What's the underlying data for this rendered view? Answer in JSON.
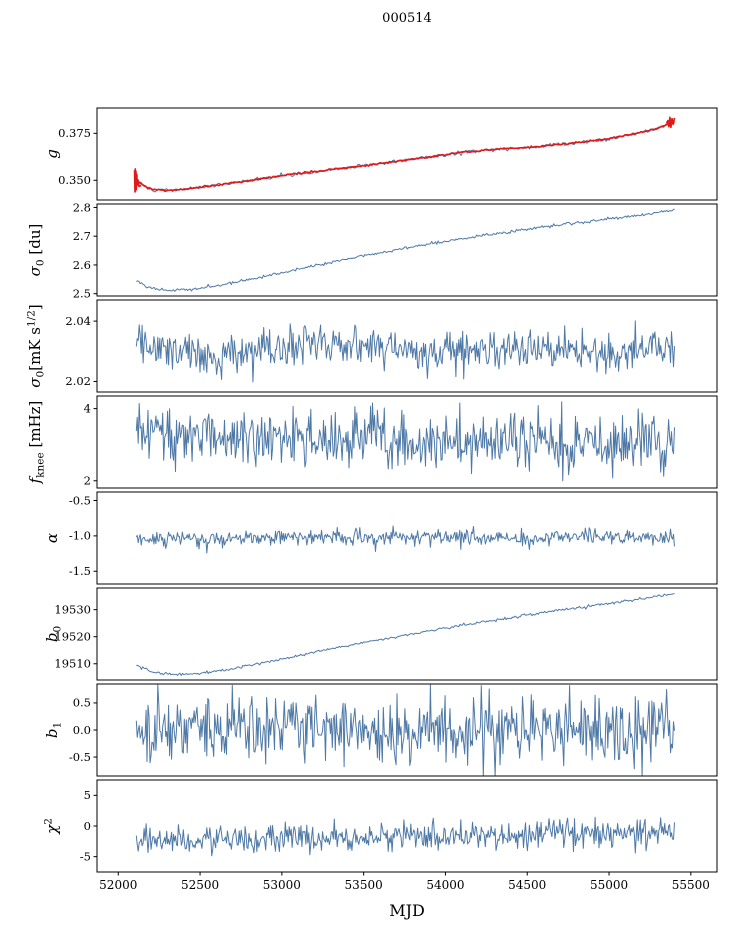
{
  "title": "000514",
  "x_axis_label": "MJD",
  "colors": {
    "line": "#4e79a7",
    "overlay": "#e11919",
    "axis": "#000000",
    "background": "#ffffff"
  },
  "chart_data": {
    "type": "line",
    "title": "000514",
    "xlabel": "MJD",
    "x_axis": {
      "lim": [
        51870,
        55660
      ],
      "ticks": [
        52000,
        52500,
        53000,
        53500,
        54000,
        54500,
        55000,
        55500
      ],
      "tick_labels": [
        "52000",
        "52500",
        "53000",
        "53500",
        "54000",
        "54500",
        "55000",
        "55500"
      ]
    },
    "panels": [
      {
        "name": "g",
        "ylabel": [
          {
            "t": "g",
            "s": "i"
          }
        ],
        "ylim": [
          0.3395,
          0.3885
        ],
        "yticks": [
          0.35,
          0.375
        ],
        "ytick_labels": [
          "0.350",
          "0.375"
        ],
        "series": [
          {
            "name": "g-data-line",
            "color": "#4e79a7",
            "sd": 0.0005,
            "n": 340,
            "seed": 101,
            "width": 1,
            "ax": [
              52100,
              52160,
              52220,
              52280,
              52360,
              52450,
              52550,
              52650,
              52750,
              52900,
              53050,
              53200,
              53350,
              53500,
              53650,
              53800,
              53950,
              54050,
              54150,
              54250,
              54350,
              54450,
              54550,
              54700,
              54850,
              55000,
              55100,
              55200,
              55300,
              55400
            ],
            "ay": [
              0.3505,
              0.3468,
              0.345,
              0.3446,
              0.3449,
              0.3457,
              0.3468,
              0.348,
              0.3492,
              0.3512,
              0.353,
              0.3546,
              0.3562,
              0.3578,
              0.3595,
              0.3612,
              0.363,
              0.3643,
              0.3652,
              0.3661,
              0.3667,
              0.3671,
              0.3679,
              0.3692,
              0.3705,
              0.3722,
              0.3738,
              0.3757,
              0.3778,
              0.3815
            ]
          },
          {
            "name": "g-fit-line",
            "color": "#e11919",
            "sd": 0.00022,
            "n": 340,
            "seed": 102,
            "width": 1.7,
            "ax": [
              52100,
              52160,
              52220,
              52280,
              52360,
              52450,
              52550,
              52650,
              52750,
              52900,
              53050,
              53200,
              53350,
              53500,
              53650,
              53800,
              53950,
              54050,
              54150,
              54250,
              54350,
              54450,
              54550,
              54700,
              54850,
              55000,
              55100,
              55200,
              55300,
              55400
            ],
            "ay": [
              0.3505,
              0.3468,
              0.345,
              0.3446,
              0.3449,
              0.3457,
              0.3468,
              0.348,
              0.3492,
              0.3512,
              0.353,
              0.3546,
              0.3562,
              0.3578,
              0.3595,
              0.3612,
              0.363,
              0.3643,
              0.3652,
              0.3661,
              0.3667,
              0.3671,
              0.3679,
              0.3692,
              0.3705,
              0.3722,
              0.3738,
              0.3757,
              0.3778,
              0.3815
            ],
            "segments": [
              [
                [
                  52100,
                  0.3553
                ],
                [
                  52102,
                  0.3438
                ],
                [
                  52104,
                  0.356
                ],
                [
                  52106,
                  0.3444
                ],
                [
                  52108,
                  0.3548
                ],
                [
                  52110,
                  0.3452
                ],
                [
                  52113,
                  0.3532
                ],
                [
                  52116,
                  0.3474
                ],
                [
                  52120,
                  0.3502
                ],
                [
                  52127,
                  0.3468
                ],
                [
                  52140,
                  0.3472
                ]
              ],
              [
                [
                  55352,
                  0.3805
                ],
                [
                  55360,
                  0.3818
                ],
                [
                  55366,
                  0.3786
                ],
                [
                  55372,
                  0.3835
                ],
                [
                  55378,
                  0.3782
                ],
                [
                  55385,
                  0.3828
                ],
                [
                  55392,
                  0.3798
                ],
                [
                  55400,
                  0.3832
                ]
              ]
            ]
          }
        ]
      },
      {
        "name": "sigma0-du",
        "ylabel": [
          {
            "t": "σ",
            "s": "i"
          },
          {
            "t": "0",
            "s": "sub"
          },
          {
            "t": " [du]",
            "s": "n"
          }
        ],
        "ylim": [
          2.492,
          2.812
        ],
        "yticks": [
          2.5,
          2.6,
          2.7,
          2.8
        ],
        "ytick_labels": [
          "2.5",
          "2.6",
          "2.7",
          "2.8"
        ],
        "series": [
          {
            "name": "sigma0-du-line",
            "color": "#4e79a7",
            "sd": 0.0025,
            "n": 420,
            "seed": 201,
            "width": 1,
            "ax": [
              52110,
              52180,
              52250,
              52330,
              52420,
              52520,
              52630,
              52750,
              52880,
              53020,
              53170,
              53320,
              53470,
              53620,
              53770,
              53920,
              54070,
              54220,
              54370,
              54520,
              54670,
              54820,
              54970,
              55120,
              55270,
              55400
            ],
            "ay": [
              2.545,
              2.524,
              2.514,
              2.512,
              2.514,
              2.52,
              2.53,
              2.543,
              2.558,
              2.575,
              2.594,
              2.612,
              2.629,
              2.645,
              2.66,
              2.675,
              2.689,
              2.702,
              2.714,
              2.726,
              2.737,
              2.748,
              2.758,
              2.769,
              2.78,
              2.792
            ]
          }
        ]
      },
      {
        "name": "sigma0-mk",
        "ylabel": [
          {
            "t": "σ",
            "s": "i"
          },
          {
            "t": "0",
            "s": "sub"
          },
          {
            "t": "[mK s",
            "s": "n"
          },
          {
            "t": "1/2",
            "s": "sup"
          },
          {
            "t": "]",
            "s": "n"
          }
        ],
        "ylim": [
          2.0165,
          2.047
        ],
        "yticks": [
          2.02,
          2.04
        ],
        "ytick_labels": [
          "2.02",
          "2.04"
        ],
        "series": [
          {
            "name": "sigma0-mk-line",
            "color": "#4e79a7",
            "sd": 0.0033,
            "n": 550,
            "seed": 301,
            "width": 1,
            "ax": [
              52110,
              52300,
              52500,
              52650,
              52800,
              53000,
              53200,
              53400,
              53600,
              53850,
              54050,
              54250,
              54450,
              54700,
              54900,
              55100,
              55250,
              55400
            ],
            "ay": [
              2.032,
              2.0305,
              2.029,
              2.0275,
              2.03,
              2.0315,
              2.0325,
              2.0315,
              2.0325,
              2.0285,
              2.0315,
              2.0305,
              2.0315,
              2.0305,
              2.0295,
              2.0285,
              2.0315,
              2.029
            ]
          }
        ]
      },
      {
        "name": "fknee",
        "ylabel": [
          {
            "t": "f",
            "s": "i"
          },
          {
            "t": "knee",
            "s": "sub"
          },
          {
            "t": " [mHz]",
            "s": "n"
          }
        ],
        "ylim": [
          1.8,
          4.35
        ],
        "yticks": [
          2,
          4
        ],
        "ytick_labels": [
          "2",
          "4"
        ],
        "series": [
          {
            "name": "fknee-line",
            "color": "#4e79a7",
            "sd": 0.4,
            "n": 550,
            "seed": 401,
            "width": 1,
            "ax": [
              52110,
              52250,
              52400,
              52600,
              52800,
              53000,
              53200,
              53500,
              53800,
              54100,
              54400,
              54700,
              55000,
              55200,
              55400
            ],
            "ay": [
              3.35,
              3.45,
              3.3,
              3.25,
              3.15,
              3.1,
              3.18,
              3.1,
              3.12,
              3.05,
              3.1,
              3.05,
              3.0,
              3.05,
              3.0
            ]
          }
        ]
      },
      {
        "name": "alpha",
        "ylabel": [
          {
            "t": "α",
            "s": "i"
          }
        ],
        "ylim": [
          -1.68,
          -0.38
        ],
        "yticks": [
          -1.5,
          -1.0,
          -0.5
        ],
        "ytick_labels": [
          "-1.5",
          "-1.0",
          "-0.5"
        ],
        "series": [
          {
            "name": "alpha-line",
            "color": "#4e79a7",
            "sd": 0.055,
            "n": 550,
            "seed": 501,
            "width": 1,
            "ax": [
              52110,
              53500,
              55400
            ],
            "ay": [
              -1.03,
              -1.02,
              -1.01
            ]
          }
        ]
      },
      {
        "name": "b0",
        "ylabel": [
          {
            "t": "b",
            "s": "i"
          },
          {
            "t": "0",
            "s": "sub"
          }
        ],
        "ylim": [
          19504,
          19538
        ],
        "yticks": [
          19510,
          19520,
          19530
        ],
        "ytick_labels": [
          "19510",
          "19520",
          "19530"
        ],
        "series": [
          {
            "name": "b0-line",
            "color": "#4e79a7",
            "sd": 0.25,
            "n": 420,
            "seed": 601,
            "width": 1,
            "ax": [
              52110,
              52200,
              52300,
              52420,
              52550,
              52700,
              52900,
              53100,
              53300,
              53500,
              53700,
              53900,
              54100,
              54300,
              54500,
              54700,
              54900,
              55100,
              55250,
              55400
            ],
            "ay": [
              19509.5,
              19507.2,
              19506.2,
              19506.0,
              19506.8,
              19508.2,
              19510.5,
              19513.0,
              19515.5,
              19517.8,
              19520.0,
              19522.2,
              19524.2,
              19526.2,
              19528.0,
              19529.8,
              19531.5,
              19533.2,
              19534.5,
              19536.0
            ]
          }
        ]
      },
      {
        "name": "b1",
        "ylabel": [
          {
            "t": "b",
            "s": "i"
          },
          {
            "t": "1",
            "s": "sub"
          }
        ],
        "ylim": [
          -0.85,
          0.85
        ],
        "yticks": [
          -0.5,
          0.0,
          0.5
        ],
        "ytick_labels": [
          "-0.5",
          "0.0",
          "0.5"
        ],
        "series": [
          {
            "name": "b1-line",
            "color": "#4e79a7",
            "sd": 0.3,
            "n": 550,
            "seed": 701,
            "width": 1,
            "ax": [
              52110,
              55400
            ],
            "ay": [
              0.0,
              0.0
            ]
          }
        ]
      },
      {
        "name": "chi2",
        "ylabel": [
          {
            "t": "χ",
            "s": "i"
          },
          {
            "t": "2",
            "s": "sup"
          }
        ],
        "ylim": [
          -7.5,
          7.5
        ],
        "yticks": [
          -5,
          0,
          5
        ],
        "ytick_labels": [
          "-5",
          "0",
          "5"
        ],
        "series": [
          {
            "name": "chi2-line",
            "color": "#4e79a7",
            "sd": 1.15,
            "n": 550,
            "seed": 801,
            "width": 1,
            "ax": [
              52110,
              52500,
              53000,
              53500,
              54000,
              54500,
              55000,
              55400
            ],
            "ay": [
              -2.1,
              -2.2,
              -2.0,
              -1.8,
              -1.6,
              -1.4,
              -1.1,
              -0.9
            ]
          }
        ]
      }
    ]
  }
}
